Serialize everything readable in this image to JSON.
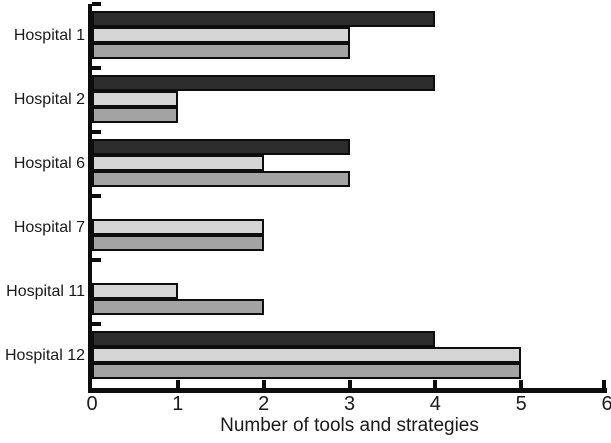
{
  "chart_data": {
    "type": "bar",
    "orientation": "horizontal",
    "title": "",
    "xlabel": "Number of tools and strategies",
    "ylabel": "",
    "xlim": [
      0,
      6
    ],
    "x_ticks": [
      0,
      1,
      2,
      3,
      4,
      5,
      6
    ],
    "grid": false,
    "legend": "none",
    "categories": [
      "Hospital 1",
      "Hospital 2",
      "Hospital 6",
      "Hospital 7",
      "Hospital 11",
      "Hospital 12"
    ],
    "series": [
      {
        "name": "dark",
        "color": "#2d2d2d",
        "values": [
          4,
          4,
          3,
          0,
          0,
          4
        ]
      },
      {
        "name": "light-gray",
        "color": "#d5d5d5",
        "values": [
          3,
          1,
          2,
          2,
          1,
          5
        ]
      },
      {
        "name": "medium-gray",
        "color": "#a3a3a3",
        "values": [
          3,
          1,
          3,
          2,
          2,
          5
        ]
      }
    ],
    "colors": {
      "axis": "#0d0d0d",
      "bar_border": "#0d0d0d",
      "text": "#1a1a1a",
      "background": "#ffffff"
    }
  }
}
